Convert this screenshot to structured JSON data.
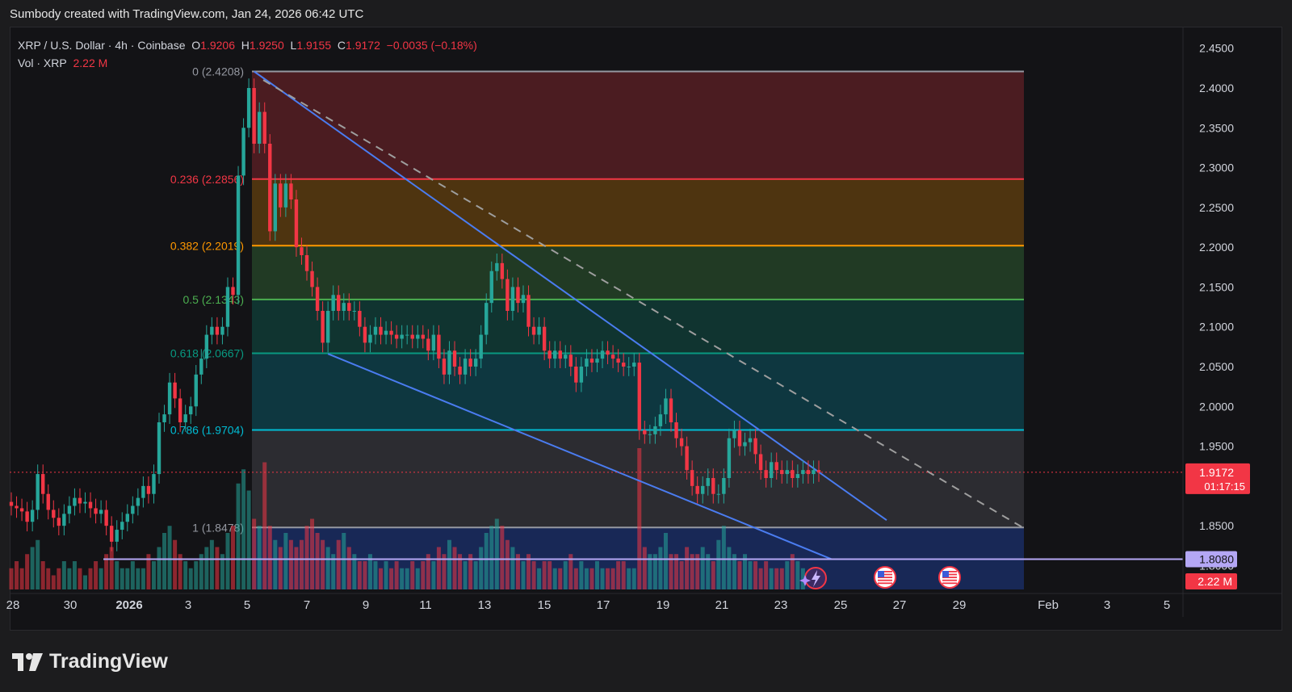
{
  "header": {
    "text": "Sumbody created with TradingView.com, Jan 24, 2026 06:42 UTC"
  },
  "legend": {
    "symbol_line": "XRP / U.S. Dollar · 4h · Coinbase",
    "o_label": "O",
    "o_value": "1.9206",
    "h_label": "H",
    "h_value": "1.9250",
    "l_label": "L",
    "l_value": "1.9155",
    "c_label": "C",
    "c_value": "1.9172",
    "change": "−0.0035 (−0.18%)",
    "vol_label": "Vol · XRP",
    "vol_value": "2.22 M"
  },
  "footer": {
    "brand": "TradingView"
  },
  "colors": {
    "up": "#26a69a",
    "down": "#f23645",
    "trendline": "#4a7cf0",
    "price_badge": "#f23645",
    "support_badge": "#b4a7f5"
  },
  "chart_data": {
    "type": "candlestick",
    "y_range": [
      1.77,
      2.47
    ],
    "y_ticks": [
      "2.4500",
      "2.4000",
      "2.3500",
      "2.3000",
      "2.2500",
      "2.2000",
      "2.1500",
      "2.1000",
      "2.0500",
      "2.0000",
      "1.9500",
      "1.8500",
      "1.8000"
    ],
    "x_ticks": [
      "28",
      "30",
      "2026",
      "3",
      "5",
      "7",
      "9",
      "11",
      "13",
      "15",
      "17",
      "19",
      "21",
      "23",
      "25",
      "27",
      "29",
      "Feb",
      "3",
      "5"
    ],
    "fib_levels": [
      {
        "ratio": "0",
        "price": 2.4208,
        "label": "0 (2.4208)",
        "color": "#9598a1"
      },
      {
        "ratio": "0.236",
        "price": 2.2856,
        "label": "0.236 (2.2856)",
        "color": "#f23645"
      },
      {
        "ratio": "0.382",
        "price": 2.2019,
        "label": "0.382 (2.2019)",
        "color": "#ff9800"
      },
      {
        "ratio": "0.5",
        "price": 2.1343,
        "label": "0.5 (2.1343)",
        "color": "#4caf50"
      },
      {
        "ratio": "0.618",
        "price": 2.0667,
        "label": "0.618 (2.0667)",
        "color": "#089981"
      },
      {
        "ratio": "0.786",
        "price": 1.9704,
        "label": "0.786 (1.9704)",
        "color": "#00bcd4"
      },
      {
        "ratio": "1",
        "price": 1.8478,
        "label": "1 (1.8478)",
        "color": "#9598a1"
      }
    ],
    "current_price": {
      "value": "1.9172",
      "countdown": "01:17:15"
    },
    "support_level": {
      "value": "1.8080"
    },
    "volume_badge": "2.22 M",
    "candles": [
      [
        1.88,
        1.875
      ],
      [
        1.875,
        1.872
      ],
      [
        1.872,
        1.868
      ],
      [
        1.868,
        1.855
      ],
      [
        1.855,
        1.87
      ],
      [
        1.87,
        1.915
      ],
      [
        1.915,
        1.89
      ],
      [
        1.89,
        1.87
      ],
      [
        1.87,
        1.86
      ],
      [
        1.86,
        1.85
      ],
      [
        1.85,
        1.865
      ],
      [
        1.865,
        1.875
      ],
      [
        1.875,
        1.885
      ],
      [
        1.885,
        1.878
      ],
      [
        1.878,
        1.88
      ],
      [
        1.88,
        1.872
      ],
      [
        1.872,
        1.865
      ],
      [
        1.865,
        1.87
      ],
      [
        1.87,
        1.85
      ],
      [
        1.85,
        1.83
      ],
      [
        1.83,
        1.845
      ],
      [
        1.845,
        1.855
      ],
      [
        1.855,
        1.865
      ],
      [
        1.865,
        1.875
      ],
      [
        1.875,
        1.885
      ],
      [
        1.885,
        1.9
      ],
      [
        1.9,
        1.89
      ],
      [
        1.89,
        1.915
      ],
      [
        1.915,
        1.98
      ],
      [
        1.98,
        1.99
      ],
      [
        1.99,
        2.03
      ],
      [
        2.03,
        2.01
      ],
      [
        2.01,
        1.98
      ],
      [
        1.98,
        1.99
      ],
      [
        1.99,
        2.0
      ],
      [
        2.0,
        2.04
      ],
      [
        2.04,
        2.06
      ],
      [
        2.06,
        2.09
      ],
      [
        2.09,
        2.1
      ],
      [
        2.1,
        2.09
      ],
      [
        2.09,
        2.1
      ],
      [
        2.1,
        2.15
      ],
      [
        2.15,
        2.14
      ],
      [
        2.14,
        2.29
      ],
      [
        2.29,
        2.35
      ],
      [
        2.35,
        2.4
      ],
      [
        2.4,
        2.33
      ],
      [
        2.33,
        2.37
      ],
      [
        2.37,
        2.33
      ],
      [
        2.33,
        2.22
      ],
      [
        2.22,
        2.28
      ],
      [
        2.28,
        2.25
      ],
      [
        2.25,
        2.28
      ],
      [
        2.28,
        2.26
      ],
      [
        2.26,
        2.2
      ],
      [
        2.2,
        2.19
      ],
      [
        2.19,
        2.17
      ],
      [
        2.17,
        2.15
      ],
      [
        2.15,
        2.12
      ],
      [
        2.12,
        2.08
      ],
      [
        2.08,
        2.12
      ],
      [
        2.12,
        2.14
      ],
      [
        2.14,
        2.12
      ],
      [
        2.12,
        2.13
      ],
      [
        2.13,
        2.12
      ],
      [
        2.12,
        2.12
      ],
      [
        2.12,
        2.1
      ],
      [
        2.1,
        2.08
      ],
      [
        2.08,
        2.09
      ],
      [
        2.09,
        2.1
      ],
      [
        2.1,
        2.09
      ],
      [
        2.09,
        2.095
      ],
      [
        2.095,
        2.09
      ],
      [
        2.09,
        2.085
      ],
      [
        2.085,
        2.09
      ],
      [
        2.09,
        2.09
      ],
      [
        2.09,
        2.085
      ],
      [
        2.085,
        2.09
      ],
      [
        2.09,
        2.085
      ],
      [
        2.085,
        2.07
      ],
      [
        2.07,
        2.09
      ],
      [
        2.09,
        2.06
      ],
      [
        2.06,
        2.04
      ],
      [
        2.04,
        2.07
      ],
      [
        2.07,
        2.05
      ],
      [
        2.05,
        2.04
      ],
      [
        2.04,
        2.06
      ],
      [
        2.06,
        2.05
      ],
      [
        2.05,
        2.06
      ],
      [
        2.06,
        2.09
      ],
      [
        2.09,
        2.13
      ],
      [
        2.13,
        2.17
      ],
      [
        2.17,
        2.18
      ],
      [
        2.18,
        2.16
      ],
      [
        2.16,
        2.12
      ],
      [
        2.12,
        2.15
      ],
      [
        2.15,
        2.13
      ],
      [
        2.13,
        2.14
      ],
      [
        2.14,
        2.1
      ],
      [
        2.1,
        2.09
      ],
      [
        2.09,
        2.1
      ],
      [
        2.1,
        2.07
      ],
      [
        2.07,
        2.06
      ],
      [
        2.06,
        2.07
      ],
      [
        2.07,
        2.06
      ],
      [
        2.06,
        2.065
      ],
      [
        2.065,
        2.05
      ],
      [
        2.05,
        2.03
      ],
      [
        2.03,
        2.05
      ],
      [
        2.05,
        2.06
      ],
      [
        2.06,
        2.055
      ],
      [
        2.055,
        2.06
      ],
      [
        2.06,
        2.07
      ],
      [
        2.07,
        2.065
      ],
      [
        2.065,
        2.06
      ],
      [
        2.06,
        2.055
      ],
      [
        2.055,
        2.05
      ],
      [
        2.05,
        2.05
      ],
      [
        2.05,
        2.055
      ],
      [
        2.055,
        1.97
      ],
      [
        1.97,
        1.965
      ],
      [
        1.965,
        1.965
      ],
      [
        1.965,
        1.975
      ],
      [
        1.975,
        1.99
      ],
      [
        1.99,
        2.01
      ],
      [
        2.01,
        1.98
      ],
      [
        1.98,
        1.96
      ],
      [
        1.96,
        1.95
      ],
      [
        1.95,
        1.92
      ],
      [
        1.92,
        1.9
      ],
      [
        1.9,
        1.89
      ],
      [
        1.89,
        1.9
      ],
      [
        1.9,
        1.91
      ],
      [
        1.91,
        1.89
      ],
      [
        1.89,
        1.89
      ],
      [
        1.89,
        1.91
      ],
      [
        1.91,
        1.96
      ],
      [
        1.96,
        1.97
      ],
      [
        1.97,
        1.95
      ],
      [
        1.95,
        1.955
      ],
      [
        1.955,
        1.96
      ],
      [
        1.96,
        1.94
      ],
      [
        1.94,
        1.92
      ],
      [
        1.92,
        1.91
      ],
      [
        1.91,
        1.93
      ],
      [
        1.93,
        1.92
      ],
      [
        1.92,
        1.915
      ],
      [
        1.915,
        1.92
      ],
      [
        1.92,
        1.91
      ],
      [
        1.91,
        1.915
      ],
      [
        1.915,
        1.92
      ],
      [
        1.92,
        1.915
      ],
      [
        1.915,
        1.92
      ],
      [
        1.92,
        1.9172
      ]
    ],
    "volumes": [
      3,
      4,
      3,
      5,
      6,
      7,
      4,
      3,
      2,
      3,
      4,
      3,
      4,
      3,
      2,
      3,
      4,
      3,
      5,
      6,
      4,
      3,
      3,
      4,
      3,
      3,
      5,
      4,
      6,
      8,
      9,
      7,
      5,
      4,
      3,
      4,
      5,
      6,
      7,
      6,
      5,
      8,
      9,
      15,
      17,
      14,
      10,
      9,
      18,
      9,
      7,
      6,
      8,
      7,
      6,
      7,
      9,
      10,
      8,
      7,
      6,
      5,
      7,
      8,
      6,
      5,
      4,
      4,
      5,
      4,
      3,
      4,
      3,
      4,
      3,
      3,
      4,
      3,
      4,
      5,
      4,
      6,
      5,
      7,
      6,
      5,
      4,
      5,
      4,
      6,
      8,
      9,
      10,
      9,
      7,
      6,
      5,
      4,
      5,
      4,
      3,
      4,
      4,
      3,
      3,
      4,
      5,
      3,
      4,
      3,
      3,
      4,
      3,
      3,
      3,
      4,
      4,
      3,
      3,
      20,
      6,
      5,
      5,
      6,
      8,
      5,
      5,
      4,
      6,
      5,
      5,
      6,
      5,
      4,
      7,
      9,
      6,
      5,
      4,
      5,
      4,
      4,
      3,
      4,
      3,
      3,
      3,
      4,
      5,
      4,
      3
    ]
  },
  "events": {
    "icons": [
      "lightning-icon",
      "us-flag-icon",
      "us-flag-icon"
    ]
  }
}
